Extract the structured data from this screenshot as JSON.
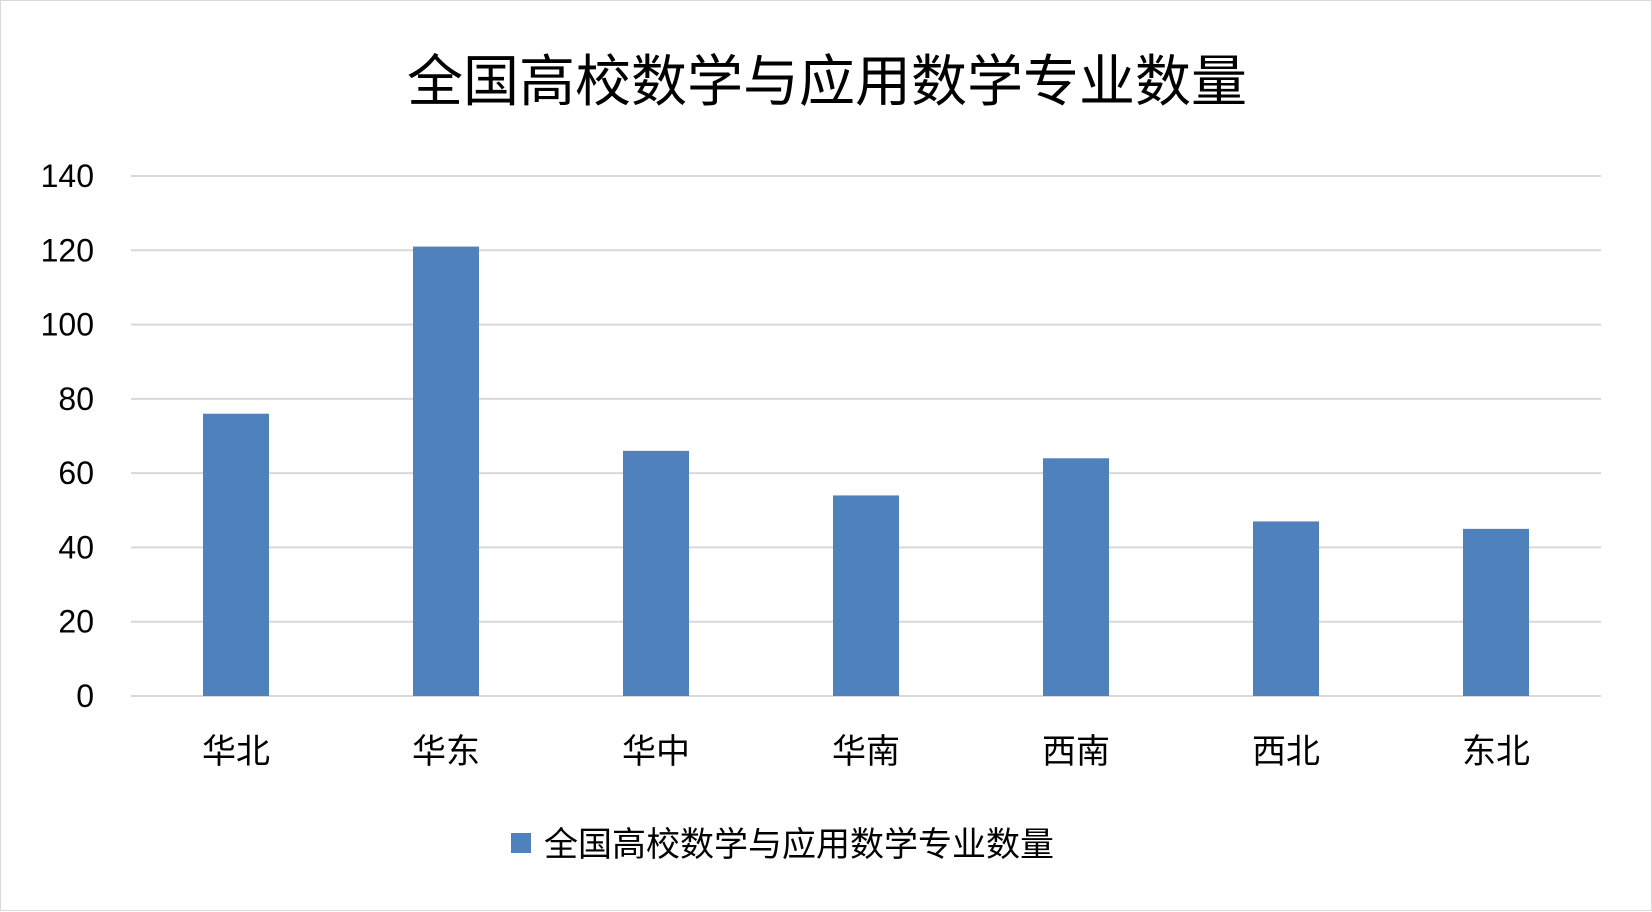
{
  "chart_data": {
    "type": "bar",
    "title": "全国高校数学与应用数学专业数量",
    "categories": [
      "华北",
      "华东",
      "华中",
      "华南",
      "西南",
      "西北",
      "东北"
    ],
    "series": [
      {
        "name": "全国高校数学与应用数学专业数量",
        "values": [
          76,
          121,
          66,
          54,
          64,
          47,
          45
        ],
        "color": "#4f81bd"
      }
    ],
    "ylim": [
      0,
      140
    ],
    "yticks": [
      "0",
      "20",
      "40",
      "60",
      "80",
      "100",
      "120",
      "140"
    ],
    "grid": true,
    "legend_position": "bottom"
  }
}
